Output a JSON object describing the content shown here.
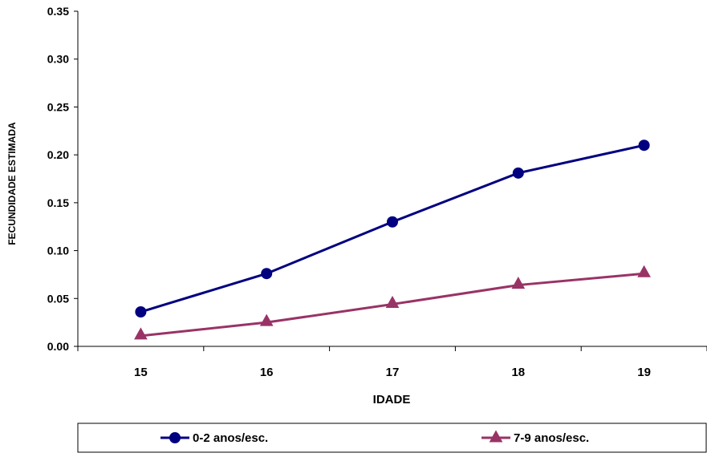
{
  "chart_data": {
    "type": "line",
    "title": "",
    "xlabel": "IDADE",
    "ylabel": "FECUNDIDADE ESTIMADA",
    "categories": [
      "15",
      "16",
      "17",
      "18",
      "19"
    ],
    "ylim": [
      0,
      0.35
    ],
    "yticks": [
      "0.00",
      "0.05",
      "0.10",
      "0.15",
      "0.20",
      "0.25",
      "0.30",
      "0.35"
    ],
    "grid": false,
    "legend": "bottom",
    "series": [
      {
        "name": "0-2 anos/esc.",
        "values": [
          0.036,
          0.076,
          0.13,
          0.181,
          0.21
        ],
        "color": "#000080",
        "marker": "circle"
      },
      {
        "name": "7-9 anos/esc.",
        "values": [
          0.011,
          0.025,
          0.044,
          0.064,
          0.076
        ],
        "color": "#993366",
        "marker": "triangle"
      }
    ]
  }
}
